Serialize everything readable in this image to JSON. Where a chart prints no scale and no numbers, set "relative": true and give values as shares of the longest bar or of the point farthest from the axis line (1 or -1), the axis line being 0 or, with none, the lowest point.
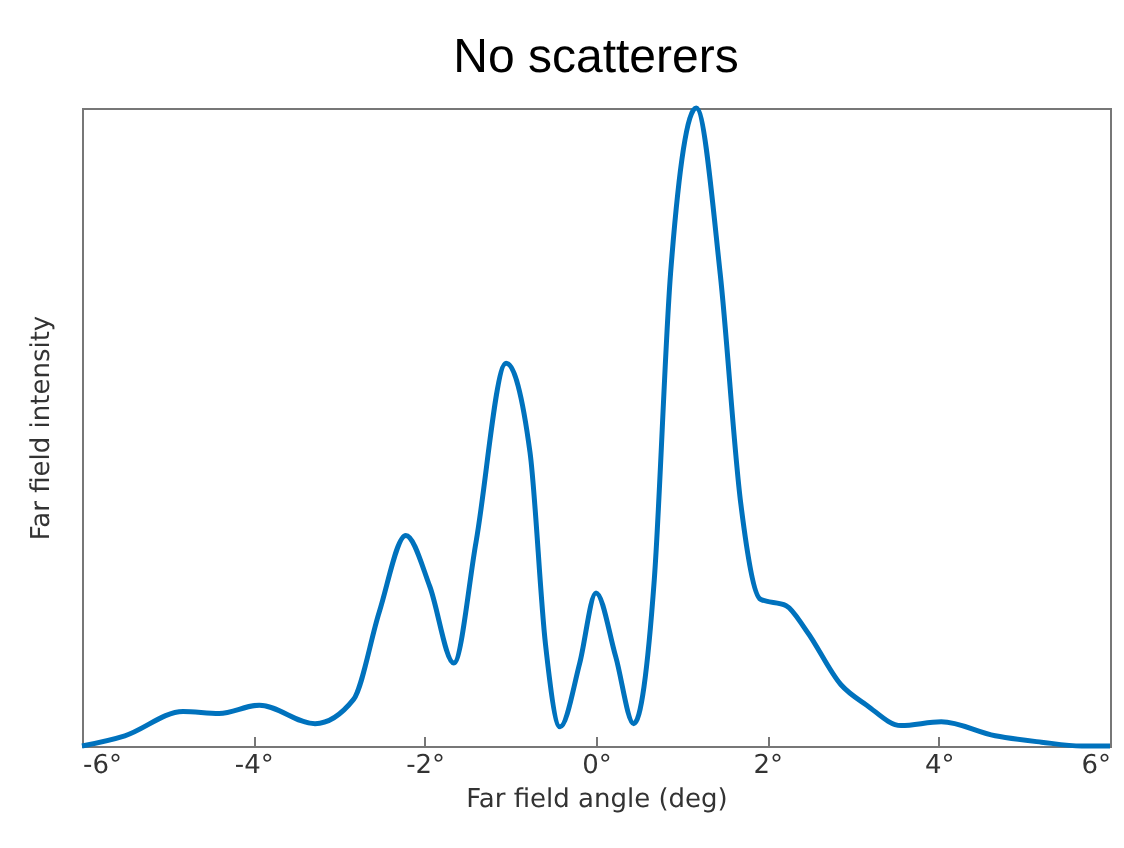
{
  "chart_data": {
    "type": "line",
    "title": "No scatterers",
    "xlabel": "Far field angle (deg)",
    "ylabel": "Far field intensity",
    "relative": true,
    "x": [
      -6,
      -5.5,
      -4.82,
      -4.4,
      -3.93,
      -3.28,
      -2.83,
      -2.53,
      -2.22,
      -1.94,
      -1.66,
      -1.4,
      -1.05,
      -0.77,
      -0.59,
      -0.42,
      -0.19,
      0,
      0.23,
      0.44,
      0.68,
      0.87,
      1.17,
      1.45,
      1.69,
      1.92,
      2.22,
      2.46,
      2.86,
      3.16,
      3.56,
      4.03,
      4.66,
      5.2,
      5.67,
      6
    ],
    "series": [
      {
        "color": "#0072bd",
        "values": [
          0,
          0.016,
          0.054,
          0.051,
          0.064,
          0.035,
          0.073,
          0.21,
          0.33,
          0.25,
          0.13,
          0.32,
          0.6,
          0.46,
          0.16,
          0.03,
          0.13,
          0.24,
          0.14,
          0.035,
          0.26,
          0.74,
          1,
          0.74,
          0.38,
          0.23,
          0.22,
          0.18,
          0.096,
          0.064,
          0.032,
          0.038,
          0.016,
          0.006,
          0,
          0
        ]
      }
    ],
    "xlim": [
      -6,
      6
    ],
    "xticks": [
      {
        "value": -6,
        "label": "-6°"
      },
      {
        "value": -4,
        "label": "-4°"
      },
      {
        "value": -2,
        "label": "-2°"
      },
      {
        "value": 0,
        "label": "0°"
      },
      {
        "value": 2,
        "label": "2°"
      },
      {
        "value": 4,
        "label": "4°"
      },
      {
        "value": 6,
        "label": "6°"
      }
    ],
    "grid": false,
    "marker": "none",
    "line_style": "solid"
  }
}
